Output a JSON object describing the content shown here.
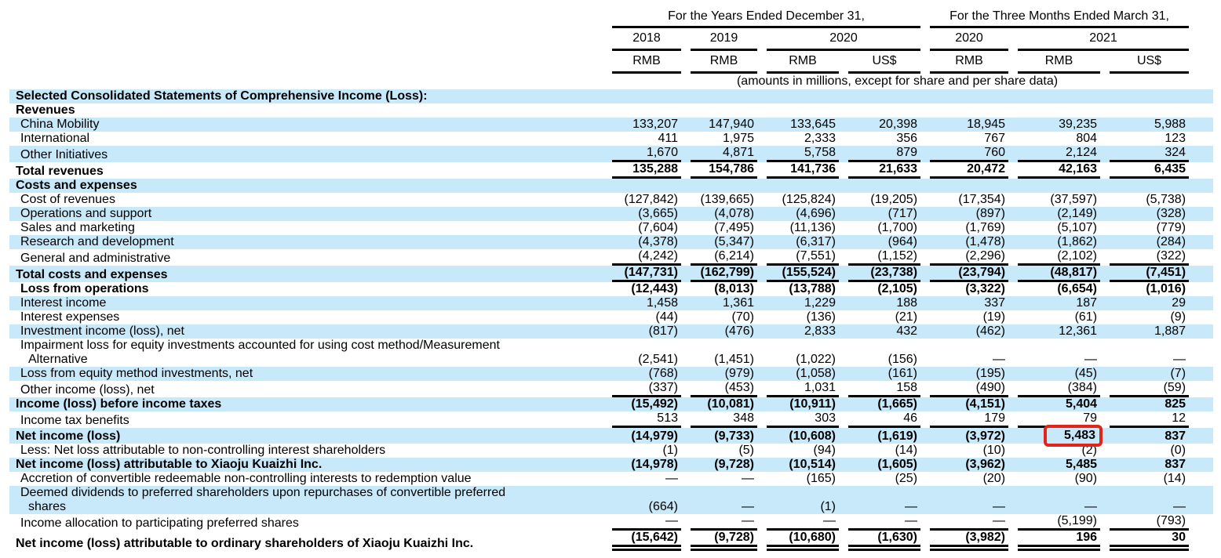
{
  "colors": {
    "stripe": "#c8e9f9",
    "highlight": "#e1251b",
    "rule": "#000000"
  },
  "table": {
    "header": {
      "group1": "For the Years Ended December 31,",
      "group2": "For the Three Months Ended March 31,",
      "year_cols": [
        {
          "label": "2018",
          "span": 1
        },
        {
          "label": "2019",
          "span": 1
        },
        {
          "label": "2020",
          "span": 2
        },
        {
          "label": "2020",
          "span": 1
        },
        {
          "label": "2021",
          "span": 2
        }
      ],
      "currencies": [
        "RMB",
        "RMB",
        "RMB",
        "US$",
        "RMB",
        "RMB",
        "US$"
      ],
      "note": "(amounts in millions, except for share and per share data)"
    },
    "rows": [
      {
        "label": "Selected Consolidated Statements of Comprehensive Income (Loss):",
        "indent": 0,
        "bold": true,
        "stripe": true,
        "vbold": false,
        "rule": "none",
        "highlight": -1,
        "values": []
      },
      {
        "label": "Revenues",
        "indent": 0,
        "bold": true,
        "stripe": false,
        "vbold": false,
        "rule": "none",
        "highlight": -1,
        "values": []
      },
      {
        "label": "China Mobility",
        "indent": 1,
        "bold": false,
        "stripe": true,
        "vbold": false,
        "rule": "none",
        "highlight": -1,
        "values": [
          "133,207",
          "147,940",
          "133,645",
          "20,398",
          "18,945",
          "39,235",
          "5,988"
        ]
      },
      {
        "label": "International",
        "indent": 1,
        "bold": false,
        "stripe": false,
        "vbold": false,
        "rule": "none",
        "highlight": -1,
        "values": [
          "411",
          "1,975",
          "2,333",
          "356",
          "767",
          "804",
          "123"
        ]
      },
      {
        "label": "Other Initiatives",
        "indent": 1,
        "bold": false,
        "stripe": true,
        "vbold": false,
        "rule": "single",
        "highlight": -1,
        "values": [
          "1,670",
          "4,871",
          "5,758",
          "879",
          "760",
          "2,124",
          "324"
        ]
      },
      {
        "label": "Total revenues",
        "indent": 0,
        "bold": true,
        "stripe": false,
        "vbold": true,
        "rule": "single",
        "highlight": -1,
        "values": [
          "135,288",
          "154,786",
          "141,736",
          "21,633",
          "20,472",
          "42,163",
          "6,435"
        ]
      },
      {
        "label": "Costs and expenses",
        "indent": 0,
        "bold": true,
        "stripe": true,
        "vbold": false,
        "rule": "none",
        "highlight": -1,
        "values": []
      },
      {
        "label": "Cost of revenues",
        "indent": 1,
        "bold": false,
        "stripe": false,
        "vbold": false,
        "rule": "none",
        "highlight": -1,
        "values": [
          "(127,842)",
          "(139,665)",
          "(125,824)",
          "(19,205)",
          "(17,354)",
          "(37,597)",
          "(5,738)"
        ]
      },
      {
        "label": "Operations and support",
        "indent": 1,
        "bold": false,
        "stripe": true,
        "vbold": false,
        "rule": "none",
        "highlight": -1,
        "values": [
          "(3,665)",
          "(4,078)",
          "(4,696)",
          "(717)",
          "(897)",
          "(2,149)",
          "(328)"
        ]
      },
      {
        "label": "Sales and marketing",
        "indent": 1,
        "bold": false,
        "stripe": false,
        "vbold": false,
        "rule": "none",
        "highlight": -1,
        "values": [
          "(7,604)",
          "(7,495)",
          "(11,136)",
          "(1,700)",
          "(1,769)",
          "(5,107)",
          "(779)"
        ]
      },
      {
        "label": "Research and development",
        "indent": 1,
        "bold": false,
        "stripe": true,
        "vbold": false,
        "rule": "none",
        "highlight": -1,
        "values": [
          "(4,378)",
          "(5,347)",
          "(6,317)",
          "(964)",
          "(1,478)",
          "(1,862)",
          "(284)"
        ]
      },
      {
        "label": "General and administrative",
        "indent": 1,
        "bold": false,
        "stripe": false,
        "vbold": false,
        "rule": "single",
        "highlight": -1,
        "values": [
          "(4,242)",
          "(6,214)",
          "(7,551)",
          "(1,152)",
          "(2,296)",
          "(2,102)",
          "(322)"
        ]
      },
      {
        "label": "Total costs and expenses",
        "indent": 0,
        "bold": true,
        "stripe": true,
        "vbold": true,
        "rule": "single",
        "highlight": -1,
        "values": [
          "(147,731)",
          "(162,799)",
          "(155,524)",
          "(23,738)",
          "(23,794)",
          "(48,817)",
          "(7,451)"
        ]
      },
      {
        "label": "Loss from operations",
        "indent": 1,
        "bold": true,
        "stripe": false,
        "vbold": true,
        "rule": "none",
        "highlight": -1,
        "values": [
          "(12,443)",
          "(8,013)",
          "(13,788)",
          "(2,105)",
          "(3,322)",
          "(6,654)",
          "(1,016)"
        ]
      },
      {
        "label": "Interest income",
        "indent": 1,
        "bold": false,
        "stripe": true,
        "vbold": false,
        "rule": "none",
        "highlight": -1,
        "values": [
          "1,458",
          "1,361",
          "1,229",
          "188",
          "337",
          "187",
          "29"
        ]
      },
      {
        "label": "Interest expenses",
        "indent": 1,
        "bold": false,
        "stripe": false,
        "vbold": false,
        "rule": "none",
        "highlight": -1,
        "values": [
          "(44)",
          "(70)",
          "(136)",
          "(21)",
          "(19)",
          "(61)",
          "(9)"
        ]
      },
      {
        "label": "Investment income (loss), net",
        "indent": 1,
        "bold": false,
        "stripe": true,
        "vbold": false,
        "rule": "none",
        "highlight": -1,
        "values": [
          "(817)",
          "(476)",
          "2,833",
          "432",
          "(462)",
          "12,361",
          "1,887"
        ]
      },
      {
        "label": "Impairment loss for equity investments accounted for using cost method/Measurement",
        "label2": "Alternative",
        "indent": 1,
        "bold": false,
        "stripe": false,
        "vbold": false,
        "rule": "none",
        "highlight": -1,
        "values": [
          "(2,541)",
          "(1,451)",
          "(1,022)",
          "(156)",
          "—",
          "—",
          "—"
        ]
      },
      {
        "label": "Loss from equity method investments, net",
        "indent": 1,
        "bold": false,
        "stripe": true,
        "vbold": false,
        "rule": "none",
        "highlight": -1,
        "values": [
          "(768)",
          "(979)",
          "(1,058)",
          "(161)",
          "(195)",
          "(45)",
          "(7)"
        ]
      },
      {
        "label": "Other income (loss), net",
        "indent": 1,
        "bold": false,
        "stripe": false,
        "vbold": false,
        "rule": "single",
        "highlight": -1,
        "values": [
          "(337)",
          "(453)",
          "1,031",
          "158",
          "(490)",
          "(384)",
          "(59)"
        ]
      },
      {
        "label": "Income (loss) before income taxes",
        "indent": 0,
        "bold": true,
        "stripe": true,
        "vbold": true,
        "rule": "none",
        "highlight": -1,
        "values": [
          "(15,492)",
          "(10,081)",
          "(10,911)",
          "(1,665)",
          "(4,151)",
          "5,404",
          "825"
        ]
      },
      {
        "label": "Income tax benefits",
        "indent": 1,
        "bold": false,
        "stripe": false,
        "vbold": false,
        "rule": "single",
        "highlight": -1,
        "values": [
          "513",
          "348",
          "303",
          "46",
          "179",
          "79",
          "12"
        ]
      },
      {
        "label": "Net income (loss)",
        "indent": 0,
        "bold": true,
        "stripe": true,
        "vbold": true,
        "rule": "none",
        "highlight": 5,
        "values": [
          "(14,979)",
          "(9,733)",
          "(10,608)",
          "(1,619)",
          "(3,972)",
          "5,483",
          "837"
        ]
      },
      {
        "label": "Less: Net loss attributable to non-controlling interest shareholders",
        "indent": 1,
        "bold": false,
        "stripe": false,
        "vbold": false,
        "rule": "none",
        "highlight": -1,
        "values": [
          "(1)",
          "(5)",
          "(94)",
          "(14)",
          "(10)",
          "(2)",
          "(0)"
        ]
      },
      {
        "label": "Net income (loss) attributable to Xiaoju Kuaizhi Inc.",
        "indent": 0,
        "bold": true,
        "stripe": true,
        "vbold": true,
        "rule": "none",
        "highlight": -1,
        "values": [
          "(14,978)",
          "(9,728)",
          "(10,514)",
          "(1,605)",
          "(3,962)",
          "5,485",
          "837"
        ]
      },
      {
        "label": "Accretion of convertible redeemable non-controlling interests to redemption value",
        "indent": 1,
        "bold": false,
        "stripe": false,
        "vbold": false,
        "rule": "none",
        "highlight": -1,
        "values": [
          "—",
          "—",
          "(165)",
          "(25)",
          "(20)",
          "(90)",
          "(14)"
        ]
      },
      {
        "label": "Deemed dividends to preferred shareholders upon repurchases of convertible preferred",
        "label2": "shares",
        "indent": 1,
        "bold": false,
        "stripe": true,
        "vbold": false,
        "rule": "none",
        "highlight": -1,
        "values": [
          "(664)",
          "—",
          "(1)",
          "—",
          "—",
          "—",
          "—"
        ]
      },
      {
        "label": "Income allocation to participating preferred shares",
        "indent": 1,
        "bold": false,
        "stripe": false,
        "vbold": false,
        "rule": "single",
        "highlight": -1,
        "values": [
          "—",
          "—",
          "—",
          "—",
          "—",
          "(5,199)",
          "(793)"
        ]
      },
      {
        "label": "Net income (loss) attributable to ordinary shareholders of Xiaoju Kuaizhi Inc.",
        "indent": 0,
        "bold": true,
        "stripe": false,
        "vbold": true,
        "rule": "double",
        "highlight": -1,
        "values": [
          "(15,642)",
          "(9,728)",
          "(10,680)",
          "(1,630)",
          "(3,982)",
          "196",
          "30"
        ]
      }
    ]
  }
}
